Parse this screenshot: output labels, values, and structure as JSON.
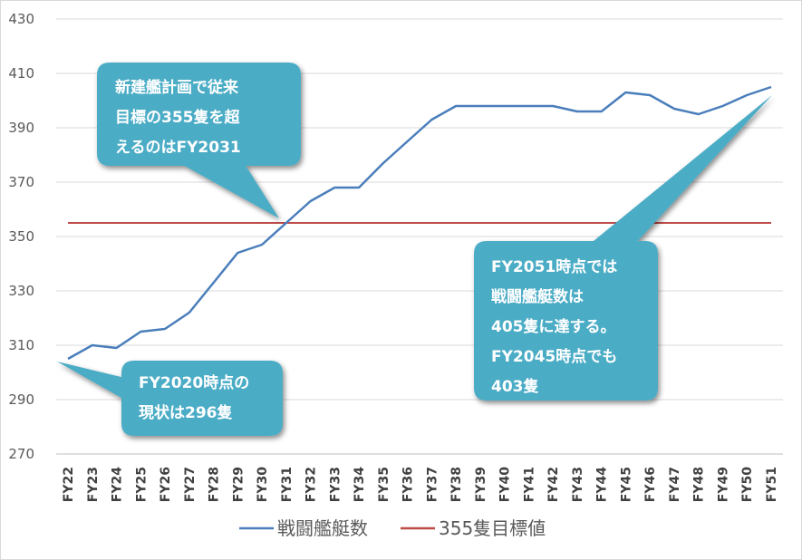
{
  "chart_data": {
    "type": "line",
    "x": [
      "FY22",
      "FY23",
      "FY24",
      "FY25",
      "FY26",
      "FY27",
      "FY28",
      "FY29",
      "FY30",
      "FY31",
      "FY32",
      "FY33",
      "FY34",
      "FY35",
      "FY36",
      "FY37",
      "FY38",
      "FY39",
      "FY40",
      "FY41",
      "FY42",
      "FY43",
      "FY44",
      "FY45",
      "FY46",
      "FY47",
      "FY48",
      "FY49",
      "FY50",
      "FY51"
    ],
    "series": [
      {
        "name": "戦闘艦艇数",
        "color": "#4a7ebb",
        "values": [
          305,
          310,
          309,
          315,
          316,
          322,
          333,
          344,
          347,
          355,
          363,
          368,
          368,
          377,
          385,
          393,
          398,
          398,
          398,
          398,
          398,
          396,
          396,
          403,
          402,
          397,
          395,
          398,
          402,
          405
        ]
      },
      {
        "name": "355隻目標値",
        "color": "#be4b48",
        "values": [
          355,
          355,
          355,
          355,
          355,
          355,
          355,
          355,
          355,
          355,
          355,
          355,
          355,
          355,
          355,
          355,
          355,
          355,
          355,
          355,
          355,
          355,
          355,
          355,
          355,
          355,
          355,
          355,
          355,
          355
        ]
      }
    ],
    "ylim": [
      270,
      430
    ],
    "yticks": [
      "270",
      "290",
      "310",
      "330",
      "350",
      "370",
      "390",
      "410",
      "430"
    ],
    "grid": true,
    "legend": "bottom",
    "annotations": [
      {
        "id": "c1",
        "lines": [
          "新建艦計画で従来",
          "目標の355隻を超",
          "えるのはFY2031"
        ]
      },
      {
        "id": "c2",
        "lines": [
          "FY2020時点の",
          "現状は296隻"
        ]
      },
      {
        "id": "c3",
        "lines": [
          "FY2051時点では",
          "戦闘艦艇数は",
          "405隻に達する。",
          "FY2045時点でも",
          "403隻"
        ]
      }
    ],
    "callout_color": "#4bacc6"
  }
}
